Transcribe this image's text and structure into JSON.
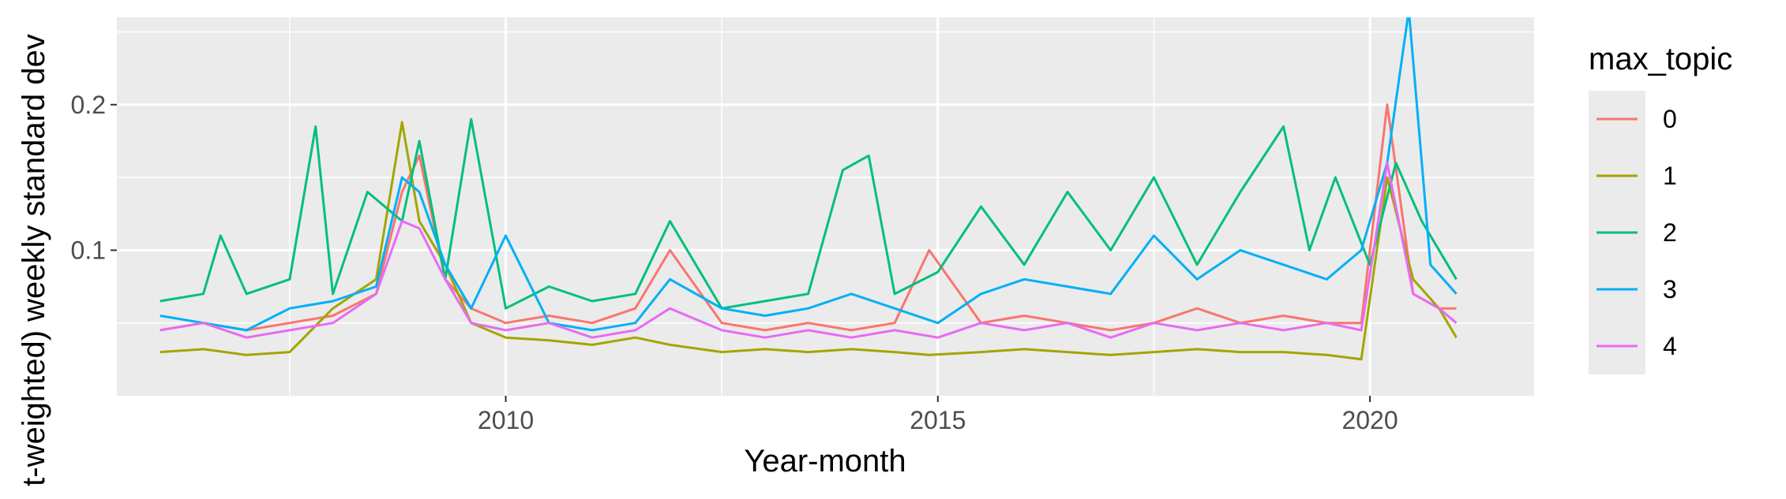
{
  "chart_data": {
    "type": "line",
    "title": "",
    "xlabel": "Year-month",
    "ylabel": "(…-weighted) weekly standard dev…",
    "ylabel_visible": "t-weighted) weekly standard dev",
    "xlim": [
      2005.5,
      2021.9
    ],
    "ylim": [
      0.0,
      0.26
    ],
    "x_ticks": [
      2010,
      2015,
      2020
    ],
    "x_tick_labels": [
      "2010",
      "2015",
      "2020"
    ],
    "y_ticks": [
      0.1,
      0.2
    ],
    "y_tick_labels": [
      "0.1",
      "0.2"
    ],
    "grid": true,
    "panel_background": "#ebebeb",
    "legend": {
      "title": "max_topic",
      "placement": "right",
      "entries": [
        "0",
        "1",
        "2",
        "3",
        "4"
      ]
    },
    "series": [
      {
        "name": "0",
        "color": "#F8766D",
        "x": [
          2006.0,
          2006.5,
          2007.0,
          2007.5,
          2008.0,
          2008.5,
          2008.8,
          2009.0,
          2009.3,
          2009.6,
          2010.0,
          2010.5,
          2011.0,
          2011.5,
          2011.9,
          2012.5,
          2013.0,
          2013.5,
          2014.0,
          2014.5,
          2014.9,
          2015.5,
          2016.0,
          2016.5,
          2017.0,
          2017.5,
          2018.0,
          2018.5,
          2019.0,
          2019.5,
          2019.9,
          2020.2,
          2020.5,
          2020.8,
          2021.0
        ],
        "values": [
          0.045,
          0.05,
          0.045,
          0.05,
          0.055,
          0.07,
          0.14,
          0.165,
          0.08,
          0.06,
          0.05,
          0.055,
          0.05,
          0.06,
          0.1,
          0.05,
          0.045,
          0.05,
          0.045,
          0.05,
          0.1,
          0.05,
          0.055,
          0.05,
          0.045,
          0.05,
          0.06,
          0.05,
          0.055,
          0.05,
          0.05,
          0.2,
          0.07,
          0.06,
          0.06
        ]
      },
      {
        "name": "1",
        "color": "#A3A500",
        "x": [
          2006.0,
          2006.5,
          2007.0,
          2007.5,
          2008.0,
          2008.5,
          2008.8,
          2009.0,
          2009.3,
          2009.6,
          2010.0,
          2010.5,
          2011.0,
          2011.5,
          2011.9,
          2012.5,
          2013.0,
          2013.5,
          2014.0,
          2014.5,
          2014.9,
          2015.5,
          2016.0,
          2016.5,
          2017.0,
          2017.5,
          2018.0,
          2018.5,
          2019.0,
          2019.5,
          2019.9,
          2020.2,
          2020.5,
          2020.8,
          2021.0
        ],
        "values": [
          0.03,
          0.032,
          0.028,
          0.03,
          0.06,
          0.08,
          0.188,
          0.12,
          0.09,
          0.05,
          0.04,
          0.038,
          0.035,
          0.04,
          0.035,
          0.03,
          0.032,
          0.03,
          0.032,
          0.03,
          0.028,
          0.03,
          0.032,
          0.03,
          0.028,
          0.03,
          0.032,
          0.03,
          0.03,
          0.028,
          0.025,
          0.15,
          0.08,
          0.06,
          0.04
        ]
      },
      {
        "name": "2",
        "color": "#00BF7D",
        "x": [
          2006.0,
          2006.5,
          2006.7,
          2007.0,
          2007.5,
          2007.8,
          2008.0,
          2008.4,
          2008.8,
          2009.0,
          2009.3,
          2009.6,
          2010.0,
          2010.5,
          2011.0,
          2011.5,
          2011.9,
          2012.5,
          2013.0,
          2013.5,
          2013.9,
          2014.2,
          2014.5,
          2015.0,
          2015.5,
          2016.0,
          2016.5,
          2017.0,
          2017.5,
          2018.0,
          2018.5,
          2019.0,
          2019.3,
          2019.6,
          2020.0,
          2020.3,
          2020.6,
          2021.0
        ],
        "values": [
          0.065,
          0.07,
          0.11,
          0.07,
          0.08,
          0.185,
          0.07,
          0.14,
          0.12,
          0.175,
          0.08,
          0.19,
          0.06,
          0.075,
          0.065,
          0.07,
          0.12,
          0.06,
          0.065,
          0.07,
          0.155,
          0.165,
          0.07,
          0.085,
          0.13,
          0.09,
          0.14,
          0.1,
          0.15,
          0.09,
          0.14,
          0.185,
          0.1,
          0.15,
          0.09,
          0.16,
          0.12,
          0.08
        ]
      },
      {
        "name": "3",
        "color": "#00B0F6",
        "x": [
          2006.0,
          2006.5,
          2007.0,
          2007.5,
          2008.0,
          2008.5,
          2008.8,
          2009.0,
          2009.3,
          2009.6,
          2010.0,
          2010.5,
          2011.0,
          2011.5,
          2011.9,
          2012.5,
          2013.0,
          2013.5,
          2014.0,
          2014.5,
          2015.0,
          2015.5,
          2016.0,
          2016.5,
          2017.0,
          2017.5,
          2018.0,
          2018.5,
          2019.0,
          2019.5,
          2019.9,
          2020.2,
          2020.45,
          2020.7,
          2021.0
        ],
        "values": [
          0.055,
          0.05,
          0.045,
          0.06,
          0.065,
          0.075,
          0.15,
          0.14,
          0.09,
          0.06,
          0.11,
          0.05,
          0.045,
          0.05,
          0.08,
          0.06,
          0.055,
          0.06,
          0.07,
          0.06,
          0.05,
          0.07,
          0.08,
          0.075,
          0.07,
          0.11,
          0.08,
          0.1,
          0.09,
          0.08,
          0.1,
          0.16,
          0.265,
          0.09,
          0.07
        ]
      },
      {
        "name": "4",
        "color": "#E76BF3",
        "x": [
          2006.0,
          2006.5,
          2007.0,
          2007.5,
          2008.0,
          2008.5,
          2008.8,
          2009.0,
          2009.3,
          2009.6,
          2010.0,
          2010.5,
          2011.0,
          2011.5,
          2011.9,
          2012.5,
          2013.0,
          2013.5,
          2014.0,
          2014.5,
          2015.0,
          2015.5,
          2016.0,
          2016.5,
          2017.0,
          2017.5,
          2018.0,
          2018.5,
          2019.0,
          2019.5,
          2019.9,
          2020.2,
          2020.5,
          2020.8,
          2021.0
        ],
        "values": [
          0.045,
          0.05,
          0.04,
          0.045,
          0.05,
          0.07,
          0.12,
          0.115,
          0.08,
          0.05,
          0.045,
          0.05,
          0.04,
          0.045,
          0.06,
          0.045,
          0.04,
          0.045,
          0.04,
          0.045,
          0.04,
          0.05,
          0.045,
          0.05,
          0.04,
          0.05,
          0.045,
          0.05,
          0.045,
          0.05,
          0.045,
          0.16,
          0.07,
          0.06,
          0.05
        ]
      }
    ]
  }
}
